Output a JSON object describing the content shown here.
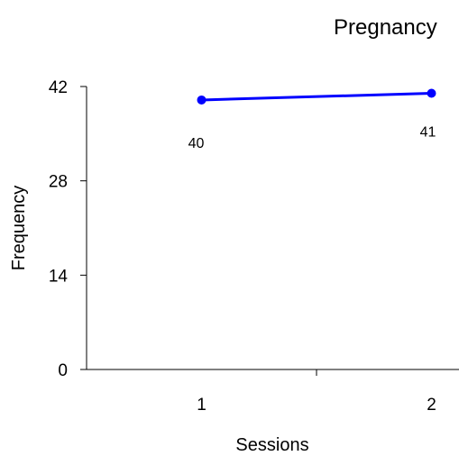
{
  "chart_data": {
    "type": "line",
    "title": "Pregnancy",
    "xlabel": "Sessions",
    "ylabel": "Frequency",
    "categories": [
      "1",
      "2"
    ],
    "series": [
      {
        "values": [
          40,
          41
        ],
        "color": "#0000FF"
      }
    ],
    "data_labels": [
      "40",
      "41"
    ],
    "ylim": [
      0,
      42
    ],
    "yticks": [
      0,
      14,
      28,
      42
    ],
    "ytick_labels": [
      "0",
      "14",
      "28",
      "42"
    ],
    "grid": false,
    "legend": "none"
  }
}
